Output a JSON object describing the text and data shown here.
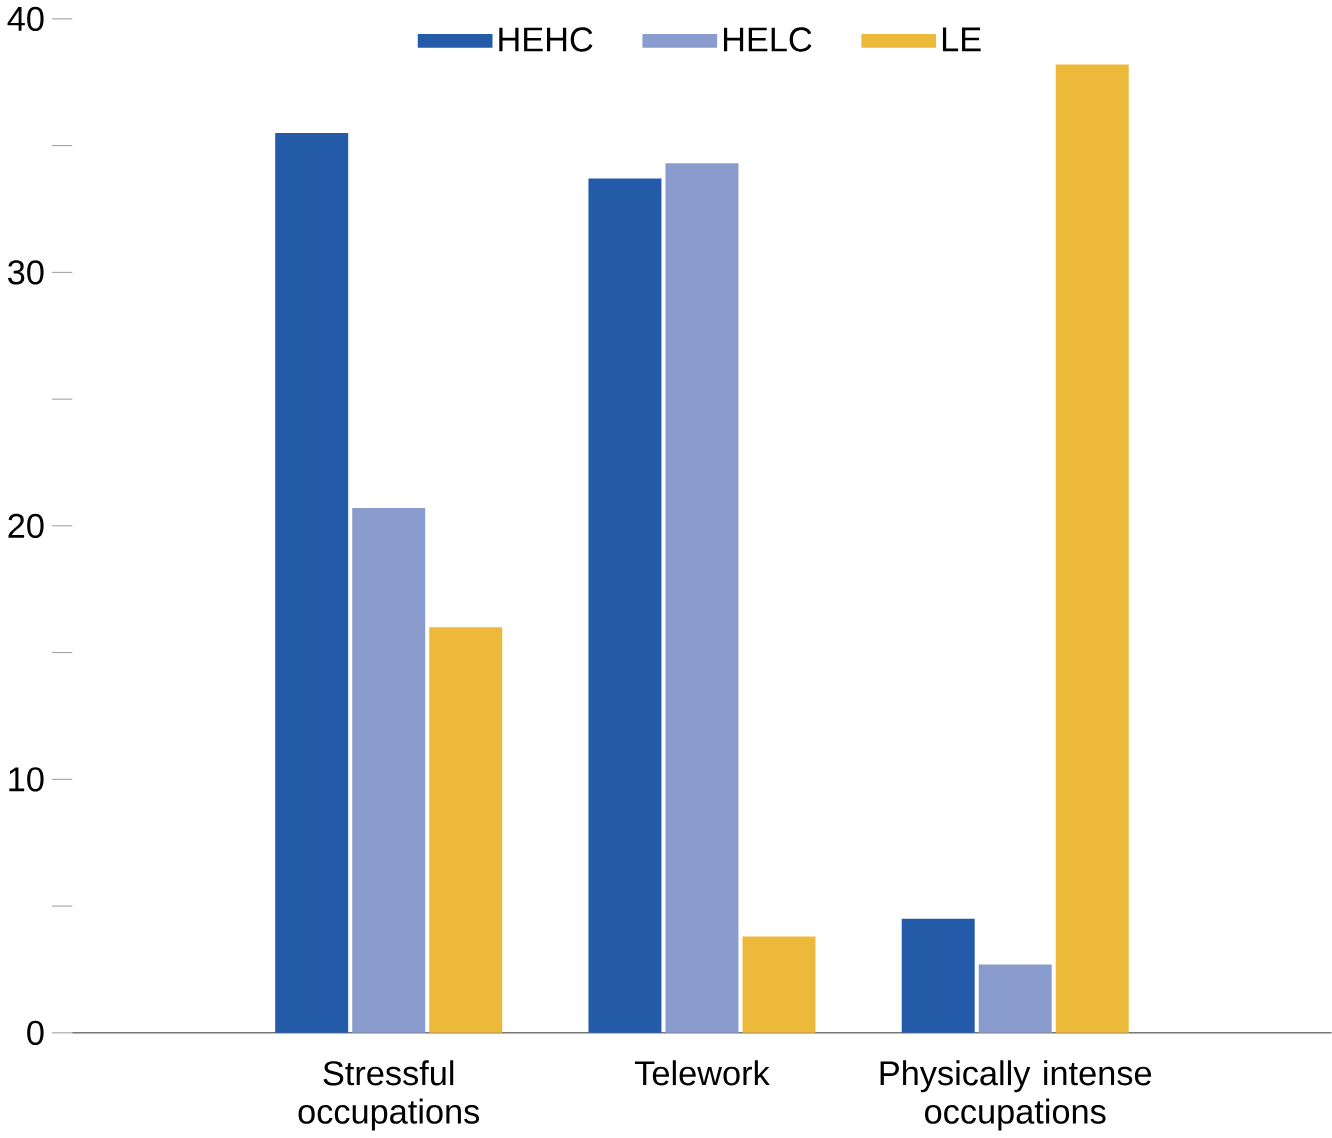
{
  "chart_data": {
    "type": "bar",
    "categories": [
      "Stressful occupations",
      "Telework",
      "Physically intense occupations"
    ],
    "series": [
      {
        "name": "HEHC",
        "color": "#235ba8",
        "values": [
          35.5,
          33.7,
          4.5
        ]
      },
      {
        "name": "HELC",
        "color": "#8a9bcd",
        "values": [
          20.7,
          34.3,
          2.7
        ]
      },
      {
        "name": "LE",
        "color": "#ecb93a",
        "values": [
          16.0,
          3.8,
          38.2
        ]
      }
    ],
    "ylim": [
      0,
      40
    ],
    "yticks": [
      0,
      {
        "value": 5,
        "label": null
      },
      10,
      {
        "value": 15,
        "label": null
      },
      20,
      {
        "value": 25,
        "label": null
      },
      30,
      {
        "value": 35,
        "label": null
      },
      40
    ],
    "legend": "top",
    "grid": false
  }
}
